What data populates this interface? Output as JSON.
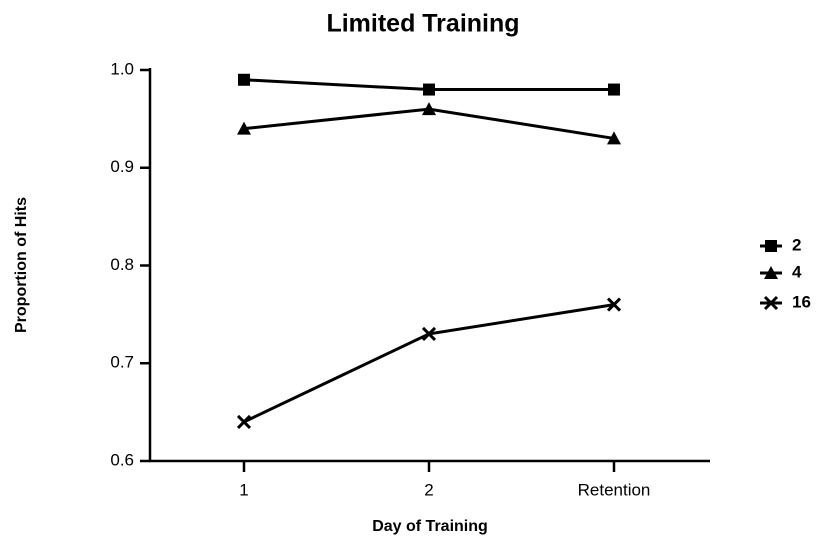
{
  "chart_data": {
    "type": "line",
    "title": "Limited Training",
    "x_label": "Day of Training",
    "y_label": "Proportion of Hits",
    "categories": [
      "1",
      "2",
      "Retention"
    ],
    "series": [
      {
        "name": "2",
        "color": "#000000",
        "marker": "square",
        "values": [
          0.99,
          0.98,
          0.98
        ]
      },
      {
        "name": "4",
        "color": "#000000",
        "marker": "triangle",
        "values": [
          0.94,
          0.96,
          0.93
        ]
      },
      {
        "name": "16",
        "color": "#000000",
        "marker": "x",
        "values": [
          0.64,
          0.73,
          0.76
        ]
      }
    ],
    "ylim": [
      0.6,
      1.0
    ],
    "yticks": [
      0.6,
      0.7,
      0.8,
      0.9,
      {
        "value": 1.0,
        "label": "1.0"
      }
    ],
    "grid": false,
    "legend": "right"
  }
}
